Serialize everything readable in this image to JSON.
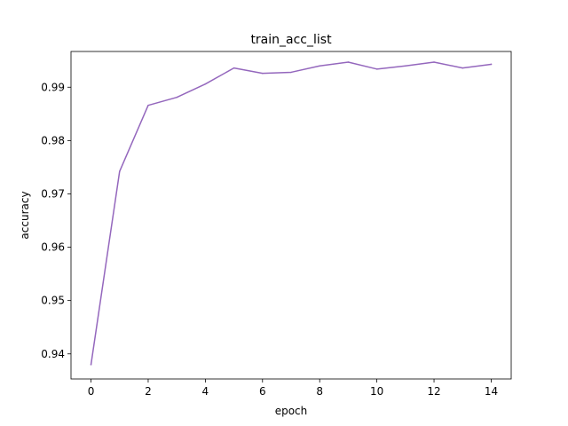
{
  "chart_data": {
    "type": "line",
    "title": "train_acc_list",
    "xlabel": "epoch",
    "ylabel": "accuracy",
    "xlim": [
      -0.7,
      14.7
    ],
    "ylim": [
      0.9353,
      0.9967
    ],
    "xticks": [
      0,
      2,
      4,
      6,
      8,
      10,
      12,
      14
    ],
    "yticks": [
      0.94,
      0.95,
      0.96,
      0.97,
      0.98,
      0.99
    ],
    "ytick_labels": [
      "0.94",
      "0.95",
      "0.96",
      "0.97",
      "0.98",
      "0.99"
    ],
    "grid": false,
    "legend": "none",
    "x": [
      0,
      1,
      2,
      3,
      4,
      5,
      6,
      7,
      8,
      9,
      10,
      11,
      12,
      13,
      14
    ],
    "series": [
      {
        "color": "#9467bd",
        "values": [
          0.938,
          0.9742,
          0.9866,
          0.9881,
          0.9906,
          0.9936,
          0.9926,
          0.9928,
          0.994,
          0.9947,
          0.9934,
          0.994,
          0.9947,
          0.9936,
          0.9943
        ]
      }
    ]
  }
}
